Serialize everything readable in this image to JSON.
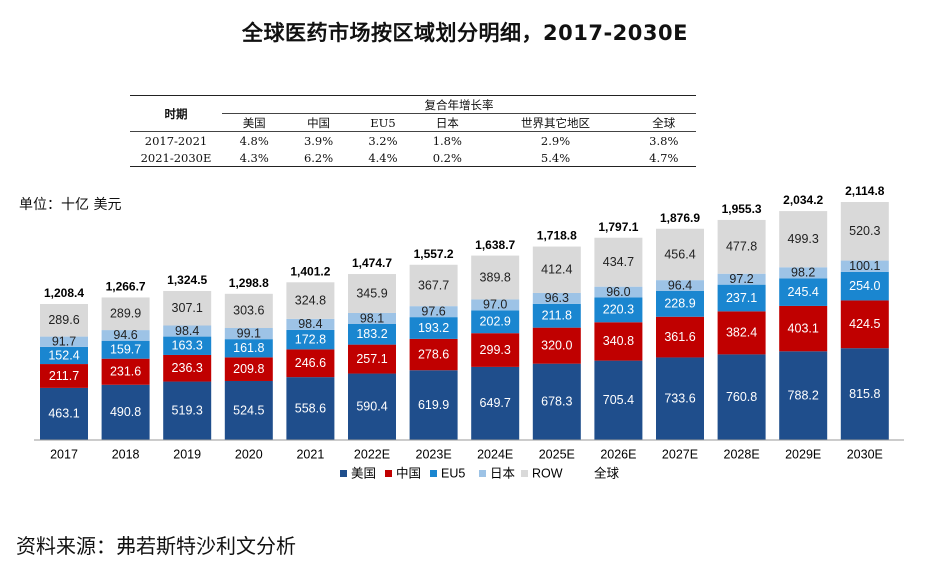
{
  "title": "全球医药市场按区域划分明细，2017-2030E",
  "unit_label": "单位：十亿 美元",
  "source": "资料来源：弗若斯特沙利文分析",
  "cagr_table": {
    "period_header": "时期",
    "group_header": "复合年增长率",
    "columns": [
      "美国",
      "中国",
      "EU5",
      "日本",
      "世界其它地区",
      "全球"
    ],
    "rows": [
      {
        "period": "2017-2021",
        "values": [
          "4.8%",
          "3.9%",
          "3.2%",
          "1.8%",
          "2.9%",
          "3.8%"
        ]
      },
      {
        "period": "2021-2030E",
        "values": [
          "4.3%",
          "6.2%",
          "4.4%",
          "0.2%",
          "5.4%",
          "4.7%"
        ]
      }
    ]
  },
  "colors": {
    "us": "#1f4e8c",
    "china": "#c00000",
    "eu5": "#1a86d0",
    "japan": "#9dc3e6",
    "row": "#d9d9d9"
  },
  "chart_data": {
    "type": "bar",
    "stacked": true,
    "categories": [
      "2017",
      "2018",
      "2019",
      "2020",
      "2021",
      "2022E",
      "2023E",
      "2024E",
      "2025E",
      "2026E",
      "2027E",
      "2028E",
      "2029E",
      "2030E"
    ],
    "series": [
      {
        "name": "美国",
        "key": "us",
        "values": [
          463.1,
          490.8,
          519.3,
          524.5,
          558.6,
          590.4,
          619.9,
          649.7,
          678.3,
          705.4,
          733.6,
          760.8,
          788.2,
          815.8
        ],
        "labels": [
          "463.1",
          "490.8",
          "519.3",
          "524.5",
          "558.6",
          "590.4",
          "619.9",
          "649.7",
          "678.3",
          "705.4",
          "733.6",
          "760.8",
          "788.2",
          "815.8"
        ]
      },
      {
        "name": "中国",
        "key": "china",
        "values": [
          211.7,
          231.6,
          236.3,
          209.8,
          246.6,
          257.1,
          278.6,
          299.3,
          320.0,
          340.8,
          361.6,
          382.4,
          403.1,
          424.5
        ],
        "labels": [
          "211.7",
          "231.6",
          "236.3",
          "209.8",
          "246.6",
          "257.1",
          "278.6",
          "299.3",
          "320.0",
          "340.8",
          "361.6",
          "382.4",
          "403.1",
          "424.5"
        ]
      },
      {
        "name": "EU5",
        "key": "eu5",
        "values": [
          152.4,
          159.7,
          163.3,
          161.8,
          172.8,
          183.2,
          193.2,
          202.9,
          211.8,
          220.3,
          228.9,
          237.1,
          245.4,
          254.0
        ],
        "labels": [
          "152.4",
          "159.7",
          "163.3",
          "161.8",
          "172.8",
          "183.2",
          "193.2",
          "202.9",
          "211.8",
          "220.3",
          "228.9",
          "237.1",
          "245.4",
          "254.0"
        ]
      },
      {
        "name": "日本",
        "key": "japan",
        "values": [
          91.7,
          94.6,
          98.4,
          99.1,
          98.4,
          98.1,
          97.6,
          97.0,
          96.3,
          96.0,
          96.4,
          97.2,
          98.2,
          100.1
        ],
        "labels": [
          "91.7",
          "94.6",
          "98.4",
          "99.1",
          "98.4",
          "98.1",
          "97.6",
          "97.0",
          "96.3",
          "96.0",
          "96.4",
          "97.2",
          "98.2",
          "100.1"
        ]
      },
      {
        "name": "ROW",
        "key": "row",
        "values": [
          289.6,
          289.9,
          307.1,
          303.6,
          324.8,
          345.9,
          367.7,
          389.8,
          412.4,
          434.7,
          456.4,
          477.8,
          499.3,
          520.3
        ],
        "labels": [
          "289.6",
          "289.9",
          "307.1",
          "303.6",
          "324.8",
          "345.9",
          "367.7",
          "389.8",
          "412.4",
          "434.7",
          "456.4",
          "477.8",
          "499.3",
          "520.3"
        ]
      }
    ],
    "totals": [
      1208.4,
      1266.7,
      1324.5,
      1298.8,
      1401.2,
      1474.7,
      1557.2,
      1638.7,
      1718.8,
      1797.1,
      1876.9,
      1955.3,
      2034.2,
      2114.8
    ],
    "total_labels": [
      "1,208.4",
      "1,266.7",
      "1,324.5",
      "1,298.8",
      "1,401.2",
      "1,474.7",
      "1,557.2",
      "1,638.7",
      "1,718.8",
      "1,797.1",
      "1,876.9",
      "1,955.3",
      "2,034.2",
      "2,114.8"
    ],
    "legend": [
      "美国",
      "中国",
      "EU5",
      "日本",
      "ROW",
      "全球"
    ],
    "legend_position": "bottom",
    "ylim": [
      0,
      2114.8
    ],
    "grid": false
  }
}
